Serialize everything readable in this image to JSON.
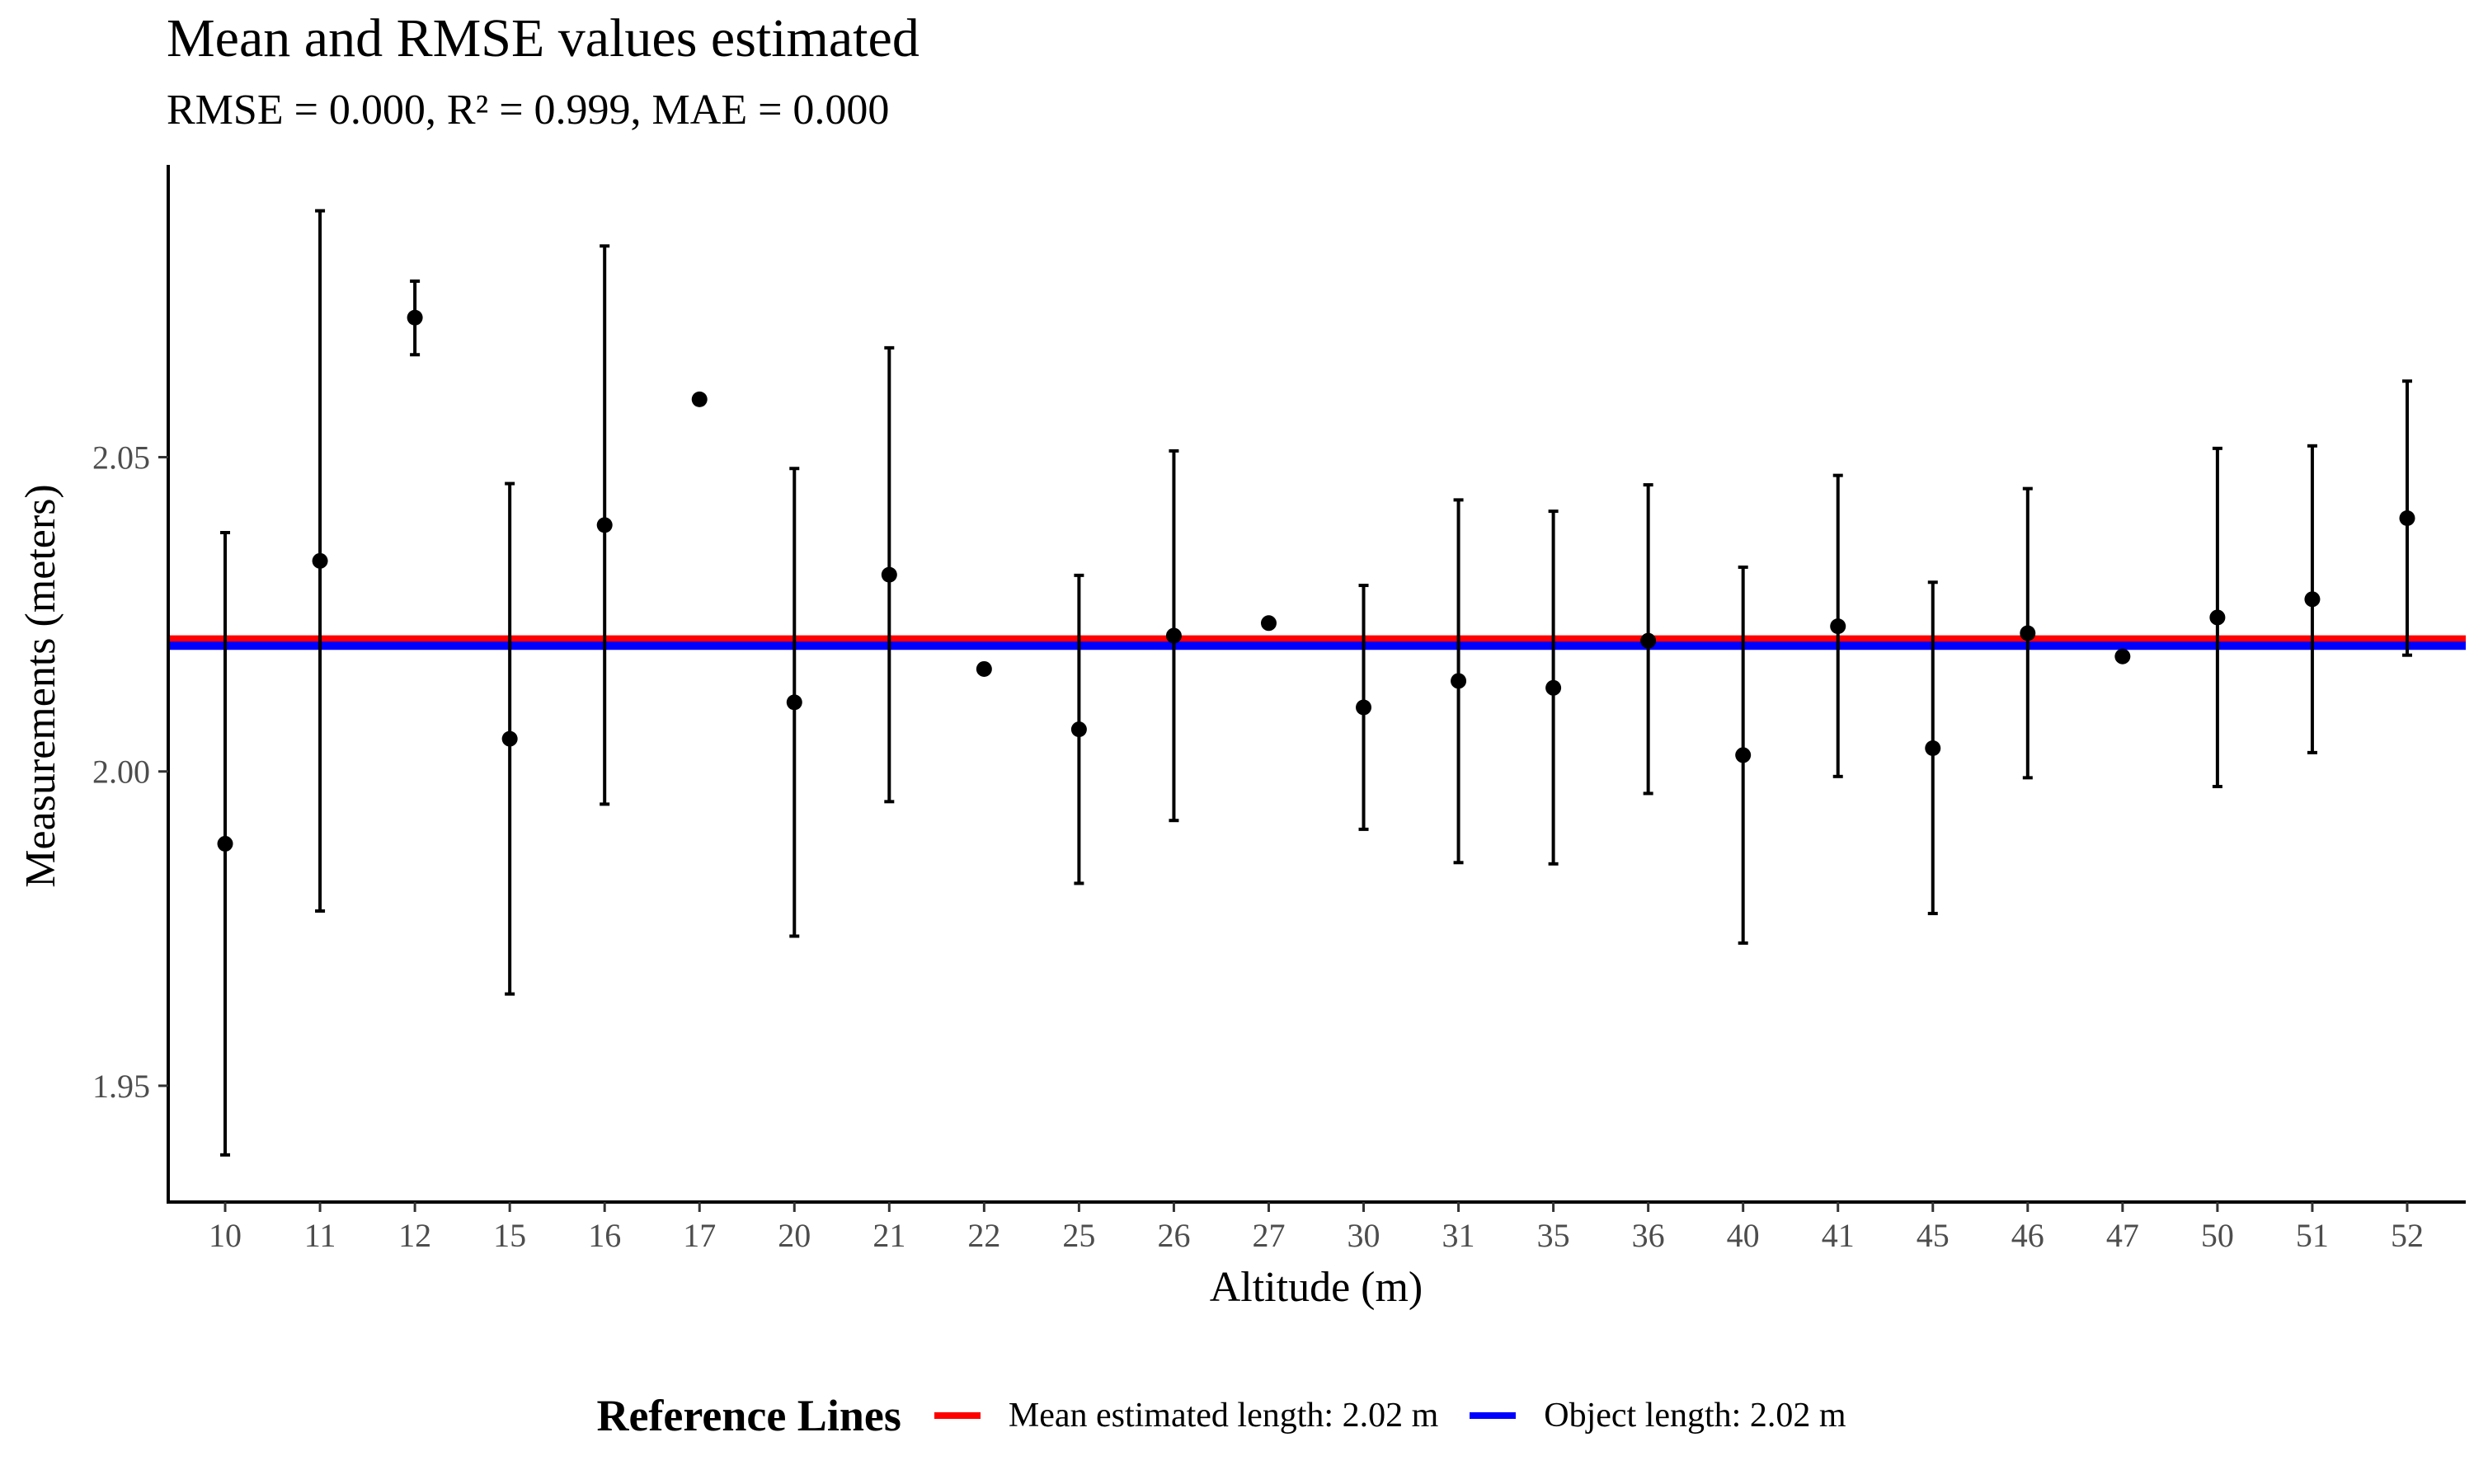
{
  "chart_data": {
    "type": "scatter",
    "title": "Mean and RMSE values estimated",
    "subtitle": "RMSE = 0.000, R² = 0.999, MAE = 0.000",
    "xlabel": "Altitude (m)",
    "ylabel": "Measurements (meters)",
    "ylim": [
      1.9315,
      2.0965
    ],
    "yticks": [
      "1.95",
      "2.00",
      "2.05"
    ],
    "categories": [
      "10",
      "11",
      "12",
      "15",
      "16",
      "17",
      "20",
      "21",
      "22",
      "25",
      "26",
      "27",
      "30",
      "31",
      "35",
      "36",
      "40",
      "41",
      "45",
      "46",
      "47",
      "50",
      "51",
      "52"
    ],
    "series": [
      {
        "means": [
          1.9885,
          2.0335,
          2.0722,
          2.0052,
          2.0392,
          2.0592,
          2.011,
          2.0313,
          2.0163,
          2.0067,
          2.0216,
          2.0236,
          2.0102,
          2.0144,
          2.0133,
          2.0208,
          2.0026,
          2.0231,
          2.0037,
          2.022,
          2.0183,
          2.0245,
          2.0274,
          2.0403
        ],
        "lower": [
          1.939,
          1.9778,
          2.0663,
          1.9646,
          1.9948,
          null,
          1.9738,
          1.9952,
          null,
          1.9822,
          1.9922,
          null,
          1.9908,
          1.9855,
          1.9853,
          1.9965,
          1.9727,
          1.9992,
          1.9774,
          1.999,
          null,
          1.9976,
          2.003,
          2.0185
        ],
        "upper": [
          2.038,
          2.0892,
          2.078,
          2.0458,
          2.0836,
          null,
          2.0482,
          2.0674,
          null,
          2.0312,
          2.051,
          null,
          2.0296,
          2.0432,
          2.0414,
          2.0456,
          2.0325,
          2.0471,
          2.0301,
          2.045,
          null,
          2.0514,
          2.0518,
          2.0621
        ],
        "color": "#000000"
      }
    ],
    "reference_lines": [
      {
        "name": "Mean estimated length: 2.02 m",
        "value": 2.021,
        "color": "#ff0000"
      },
      {
        "name": "Object length: 2.02 m",
        "value": 2.02,
        "color": "#0000ff"
      }
    ],
    "legend": {
      "title": "Reference Lines",
      "position": "bottom"
    },
    "grid": false
  }
}
